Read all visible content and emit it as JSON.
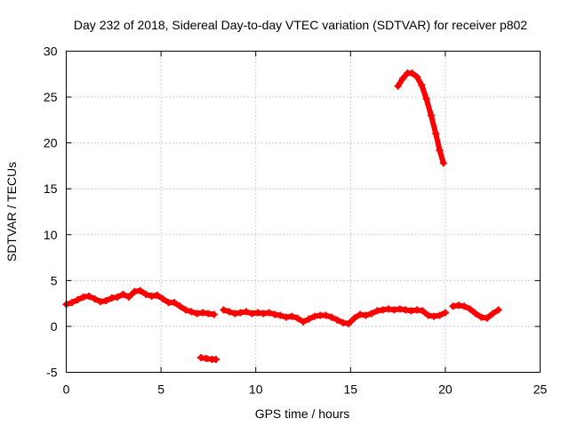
{
  "chart_data": {
    "type": "scatter",
    "title": "Day 232 of 2018, Sidereal Day-to-day VTEC variation (SDTVAR) for receiver p802",
    "xlabel": "GPS time / hours",
    "ylabel": "SDTVAR / TECUs",
    "xlim": [
      0,
      25
    ],
    "ylim": [
      -5,
      30
    ],
    "xticks": [
      "0",
      "5",
      "10",
      "15",
      "20",
      "25"
    ],
    "yticks": [
      "-5",
      "0",
      "5",
      "10",
      "15",
      "20",
      "25",
      "30"
    ],
    "grid": true,
    "marker_color": "#ff0000",
    "series": [
      {
        "values": [
          [
            0.0,
            2.4
          ],
          [
            0.3,
            2.6
          ],
          [
            0.6,
            2.9
          ],
          [
            0.9,
            3.2
          ],
          [
            1.2,
            3.3
          ],
          [
            1.5,
            3.0
          ],
          [
            1.8,
            2.7
          ],
          [
            2.1,
            2.8
          ],
          [
            2.4,
            3.1
          ],
          [
            2.7,
            3.2
          ],
          [
            3.0,
            3.5
          ],
          [
            3.3,
            3.2
          ],
          [
            3.6,
            3.8
          ],
          [
            3.9,
            3.9
          ],
          [
            4.2,
            3.5
          ],
          [
            4.5,
            3.3
          ],
          [
            4.8,
            3.4
          ],
          [
            5.1,
            3.0
          ],
          [
            5.4,
            2.6
          ],
          [
            5.7,
            2.6
          ],
          [
            6.0,
            2.2
          ],
          [
            6.3,
            1.8
          ],
          [
            6.6,
            1.6
          ],
          [
            6.9,
            1.4
          ],
          [
            7.2,
            1.5
          ],
          [
            7.5,
            1.4
          ],
          [
            7.8,
            1.3
          ]
        ]
      },
      {
        "values": [
          [
            7.1,
            -3.4
          ],
          [
            7.4,
            -3.5
          ],
          [
            7.7,
            -3.6
          ],
          [
            7.9,
            -3.6
          ]
        ]
      },
      {
        "values": [
          [
            8.3,
            1.8
          ],
          [
            8.6,
            1.6
          ],
          [
            8.9,
            1.4
          ],
          [
            9.2,
            1.5
          ],
          [
            9.5,
            1.6
          ],
          [
            9.8,
            1.4
          ],
          [
            10.1,
            1.5
          ],
          [
            10.4,
            1.4
          ],
          [
            10.7,
            1.5
          ],
          [
            11.0,
            1.3
          ],
          [
            11.3,
            1.2
          ],
          [
            11.6,
            1.0
          ],
          [
            11.9,
            1.1
          ],
          [
            12.2,
            0.9
          ],
          [
            12.5,
            0.5
          ],
          [
            12.8,
            0.8
          ],
          [
            13.1,
            1.1
          ],
          [
            13.4,
            1.2
          ],
          [
            13.7,
            1.2
          ],
          [
            14.0,
            1.0
          ],
          [
            14.3,
            0.7
          ],
          [
            14.6,
            0.4
          ],
          [
            14.9,
            0.3
          ],
          [
            15.2,
            0.9
          ],
          [
            15.5,
            1.3
          ],
          [
            15.8,
            1.2
          ],
          [
            16.1,
            1.4
          ],
          [
            16.4,
            1.7
          ],
          [
            16.7,
            1.8
          ],
          [
            17.0,
            1.9
          ],
          [
            17.3,
            1.8
          ],
          [
            17.6,
            1.9
          ],
          [
            17.9,
            1.8
          ],
          [
            18.2,
            1.7
          ],
          [
            18.5,
            1.8
          ],
          [
            18.8,
            1.7
          ],
          [
            19.1,
            1.2
          ],
          [
            19.4,
            1.1
          ],
          [
            19.7,
            1.2
          ],
          [
            20.0,
            1.5
          ]
        ]
      },
      {
        "values": [
          [
            17.5,
            26.2
          ],
          [
            17.75,
            27.0
          ],
          [
            18.0,
            27.6
          ],
          [
            18.25,
            27.6
          ],
          [
            18.5,
            27.2
          ],
          [
            18.75,
            26.3
          ],
          [
            19.0,
            24.8
          ],
          [
            19.25,
            23.0
          ],
          [
            19.5,
            21.0
          ],
          [
            19.7,
            19.2
          ],
          [
            19.9,
            17.8
          ]
        ]
      },
      {
        "values": [
          [
            20.4,
            2.2
          ],
          [
            20.7,
            2.3
          ],
          [
            21.0,
            2.2
          ],
          [
            21.3,
            1.9
          ],
          [
            21.6,
            1.4
          ],
          [
            21.9,
            1.0
          ],
          [
            22.2,
            0.9
          ],
          [
            22.5,
            1.4
          ],
          [
            22.8,
            1.8
          ]
        ]
      }
    ]
  }
}
